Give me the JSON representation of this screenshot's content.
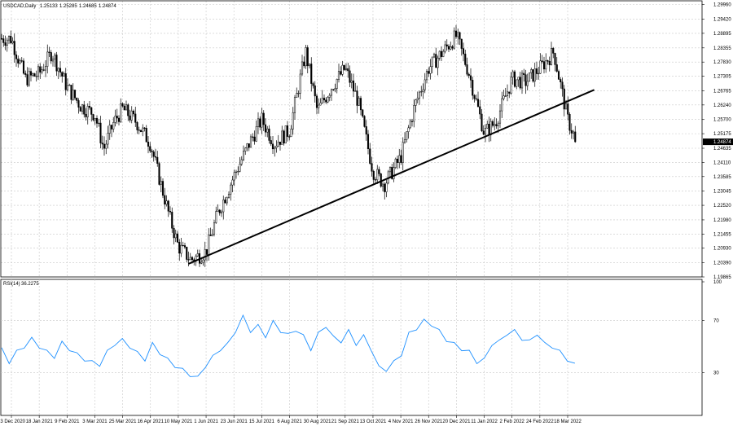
{
  "header": {
    "symbol": "USDCAD,Daily",
    "open": "1.25133",
    "high": "1.25285",
    "low": "1.24685",
    "close": "1.24874"
  },
  "rsi_header": {
    "label": "RSI(14)",
    "value": "36.2275"
  },
  "colors": {
    "candle": "#000000",
    "trendline": "#000000",
    "rsi_line": "#1e90ff",
    "grid": "#c8c8c8",
    "current_price_bg": "#000000"
  },
  "chart_data": [
    {
      "type": "candlestick",
      "title": "USDCAD,Daily",
      "y_ticks": [
        "1.29960",
        "1.29420",
        "1.28895",
        "1.28355",
        "1.27830",
        "1.27305",
        "1.26765",
        "1.26240",
        "1.25700",
        "1.25175",
        "1.24635",
        "1.24110",
        "1.23585",
        "1.23045",
        "1.22520",
        "1.21980",
        "1.21455",
        "1.20930",
        "1.20390",
        "1.19865"
      ],
      "ylim": [
        1.19865,
        1.301
      ],
      "current_price": "1.24874",
      "x_ticks": [
        "23 Dec 2020",
        "18 Jan 2021",
        "9 Feb 2021",
        "3 Mar 2021",
        "25 Mar 2021",
        "16 Apr 2021",
        "10 May 2021",
        "1 Jun 2021",
        "23 Jun 2021",
        "15 Jul 2021",
        "6 Aug 2021",
        "30 Aug 2021",
        "21 Sep 2021",
        "13 Oct 2021",
        "4 Nov 2021",
        "26 Nov 2021",
        "20 Dec 2021",
        "11 Jan 2022",
        "2 Feb 2022",
        "24 Feb 2022",
        "18 Mar 2022"
      ],
      "price_path": [
        {
          "date": "23 Dec 2020",
          "close": 1.287
        },
        {
          "date": "5 Jan 2021",
          "close": 1.272
        },
        {
          "date": "18 Jan 2021",
          "close": 1.274
        },
        {
          "date": "28 Jan 2021",
          "close": 1.282
        },
        {
          "date": "9 Feb 2021",
          "close": 1.269
        },
        {
          "date": "20 Feb 2021",
          "close": 1.262
        },
        {
          "date": "3 Mar 2021",
          "close": 1.259
        },
        {
          "date": "10 Mar 2021",
          "close": 1.246
        },
        {
          "date": "18 Mar 2021",
          "close": 1.256
        },
        {
          "date": "25 Mar 2021",
          "close": 1.261
        },
        {
          "date": "5 Apr 2021",
          "close": 1.256
        },
        {
          "date": "16 Apr 2021",
          "close": 1.248
        },
        {
          "date": "25 Apr 2021",
          "close": 1.233
        },
        {
          "date": "3 May 2021",
          "close": 1.22
        },
        {
          "date": "10 May 2021",
          "close": 1.21
        },
        {
          "date": "20 May 2021",
          "close": 1.205
        },
        {
          "date": "1 Jun 2021",
          "close": 1.208
        },
        {
          "date": "10 Jun 2021",
          "close": 1.222
        },
        {
          "date": "23 Jun 2021",
          "close": 1.236
        },
        {
          "date": "5 Jul 2021",
          "close": 1.248
        },
        {
          "date": "15 Jul 2021",
          "close": 1.257
        },
        {
          "date": "25 Jul 2021",
          "close": 1.248
        },
        {
          "date": "6 Aug 2021",
          "close": 1.253
        },
        {
          "date": "20 Aug 2021",
          "close": 1.282
        },
        {
          "date": "30 Aug 2021",
          "close": 1.26
        },
        {
          "date": "10 Sep 2021",
          "close": 1.269
        },
        {
          "date": "21 Sep 2021",
          "close": 1.276
        },
        {
          "date": "1 Oct 2021",
          "close": 1.264
        },
        {
          "date": "13 Oct 2021",
          "close": 1.238
        },
        {
          "date": "22 Oct 2021",
          "close": 1.233
        },
        {
          "date": "4 Nov 2021",
          "close": 1.243
        },
        {
          "date": "15 Nov 2021",
          "close": 1.262
        },
        {
          "date": "26 Nov 2021",
          "close": 1.276
        },
        {
          "date": "10 Dec 2021",
          "close": 1.283
        },
        {
          "date": "20 Dec 2021",
          "close": 1.288
        },
        {
          "date": "30 Dec 2021",
          "close": 1.274
        },
        {
          "date": "11 Jan 2022",
          "close": 1.252
        },
        {
          "date": "20 Jan 2022",
          "close": 1.256
        },
        {
          "date": "2 Feb 2022",
          "close": 1.272
        },
        {
          "date": "13 Feb 2022",
          "close": 1.271
        },
        {
          "date": "24 Feb 2022",
          "close": 1.276
        },
        {
          "date": "7 Mar 2022",
          "close": 1.282
        },
        {
          "date": "18 Mar 2022",
          "close": 1.257
        },
        {
          "date": "25 Mar 2022",
          "close": 1.2487
        }
      ],
      "trendline": {
        "start": {
          "date": "18 May 2021",
          "price": 1.2035
        },
        "end": {
          "date": "8 Apr 2022",
          "price": 1.268
        }
      }
    },
    {
      "type": "line",
      "title": "RSI(14) 36.2275",
      "y_ticks": [
        "100",
        "70",
        "30",
        "0"
      ],
      "ylim": [
        0,
        100
      ],
      "series": [
        {
          "values": [
            48,
            38,
            46,
            50,
            56,
            50,
            46,
            42,
            53,
            48,
            44,
            40,
            38,
            36,
            46,
            52,
            55,
            50,
            45,
            40,
            52,
            45,
            40,
            35,
            32,
            28,
            26,
            35,
            42,
            48,
            52,
            62,
            73,
            62,
            66,
            58,
            69,
            62,
            59,
            63,
            58,
            48,
            60,
            66,
            57,
            54,
            62,
            52,
            58,
            48,
            34,
            32,
            38,
            44,
            60,
            64,
            70,
            67,
            62,
            55,
            52,
            48,
            46,
            38,
            40,
            52,
            54,
            60,
            62,
            56,
            54,
            60,
            52,
            50,
            46,
            40,
            36
          ]
        }
      ]
    }
  ]
}
